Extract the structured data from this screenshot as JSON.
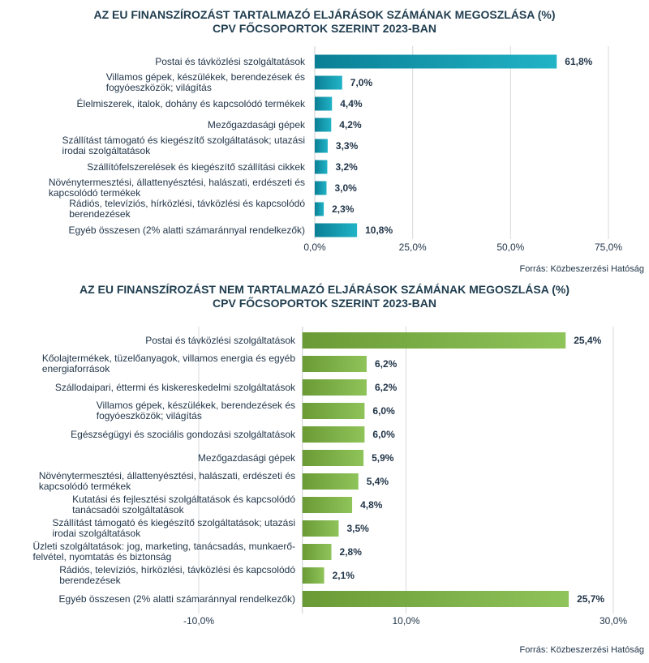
{
  "chart_data": [
    {
      "type": "bar",
      "orientation": "horizontal",
      "title": "AZ EU FINANSZÍROZÁST TARTALMAZÓ ELJÁRÁSOK SZÁMÁNAK MEGOSZLÁSA (%)",
      "subtitle": "CPV FŐCSOPORTOK SZERINT 2023-BAN",
      "categories": [
        "Postai és távközlési szolgáltatások",
        "Villamos gépek, készülékek, berendezések és fogyóeszközök; világítás",
        "Élelmiszerek, italok, dohány és kapcsolódó termékek",
        "Mezőgazdasági gépek",
        "Szállítást támogató és kiegészítő szolgáltatások; utazási irodai szolgáltatások",
        "Szállítófelszerelések és kiegészítő szállítási cikkek",
        "Növénytermesztési, állattenyésztési, halászati, erdészeti és kapcsolódó termékek",
        "Rádiós, televíziós, hírközlési, távközlési és kapcsolódó berendezések",
        "Egyéb összesen (2% alatti számaránnyal rendelkezők)"
      ],
      "category_lines": [
        [
          "Postai és távközlési szolgáltatások"
        ],
        [
          "Villamos gépek, készülékek, berendezések és",
          "fogyóeszközök; világítás"
        ],
        [
          "Élelmiszerek, italok, dohány és kapcsolódó termékek"
        ],
        [
          "Mezőgazdasági gépek"
        ],
        [
          "Szállítást támogató és kiegészítő szolgáltatások; utazási",
          "irodai szolgáltatások"
        ],
        [
          "Szállítófelszerelések és kiegészítő szállítási cikkek"
        ],
        [
          "Növénytermesztési, állattenyésztési, halászati, erdészeti és",
          "kapcsolódó termékek"
        ],
        [
          "Rádiós, televíziós, hírközlési, távközlési és kapcsolódó",
          "berendezések"
        ],
        [
          "Egyéb összesen (2% alatti számaránnyal rendelkezők)"
        ]
      ],
      "values": [
        61.8,
        7.0,
        4.4,
        4.2,
        3.3,
        3.2,
        3.0,
        2.3,
        10.8
      ],
      "value_labels": [
        "61,8%",
        "7,0%",
        "4,4%",
        "4,2%",
        "3,3%",
        "3,2%",
        "3,0%",
        "2,3%",
        "10,8%"
      ],
      "xlim": [
        0,
        75
      ],
      "xticks": [
        0,
        25,
        50,
        75
      ],
      "xtick_labels": [
        "0,0%",
        "25,0%",
        "50,0%",
        "75,0%"
      ],
      "grid": true,
      "bar_gradient": [
        "#0a7f95",
        "#21b3c6"
      ],
      "source": "Forrás: Közbeszerzési Hatóság"
    },
    {
      "type": "bar",
      "orientation": "horizontal",
      "title": "AZ EU FINANSZÍROZÁST NEM TARTALMAZÓ ELJÁRÁSOK SZÁMÁNAK MEGOSZLÁSA (%)",
      "subtitle": "CPV FŐCSOPORTOK SZERINT 2023-BAN",
      "categories": [
        "Postai és távközlési szolgáltatások",
        "Kőolajtermékek, tüzelőanyagok, villamos energia és egyéb energiaforrások",
        "Szállodaipari, éttermi és kiskereskedelmi szolgáltatások",
        "Villamos gépek, készülékek, berendezések és fogyóeszközök; világítás",
        "Egészségügyi és szociális gondozási szolgáltatások",
        "Mezőgazdasági gépek",
        "Növénytermesztési, állattenyésztési, halászati, erdészeti és kapcsolódó termékek",
        "Kutatási és fejlesztési szolgáltatások és kapcsolódó tanácsadói szolgáltatások",
        "Szállítást támogató és kiegészítő szolgáltatások; utazási irodai szolgáltatások",
        "Üzleti szolgáltatások: jog, marketing, tanácsadás, munkaerő-felvétel, nyomtatás és biztonság",
        "Rádiós, televíziós, hírközlési, távközlési és kapcsolódó berendezések",
        "Egyéb összesen (2% alatti számaránnyal rendelkezők)"
      ],
      "category_lines": [
        [
          "Postai és távközlési szolgáltatások"
        ],
        [
          "Kőolajtermékek, tüzelőanyagok, villamos energia és egyéb",
          "energiaforrások"
        ],
        [
          "Szállodaipari, éttermi és kiskereskedelmi szolgáltatások"
        ],
        [
          "Villamos gépek, készülékek, berendezések és",
          "fogyóeszközök; világítás"
        ],
        [
          "Egészségügyi és szociális gondozási szolgáltatások"
        ],
        [
          "Mezőgazdasági gépek"
        ],
        [
          "Növénytermesztési, állattenyésztési, halászati, erdészeti és",
          "kapcsolódó termékek"
        ],
        [
          "Kutatási és fejlesztési szolgáltatások és kapcsolódó",
          "tanácsadói szolgáltatások"
        ],
        [
          "Szállítást támogató és kiegészítő szolgáltatások; utazási",
          "irodai szolgáltatások"
        ],
        [
          "Üzleti szolgáltatások: jog, marketing, tanácsadás, munkaerő-",
          "felvétel, nyomtatás és biztonság"
        ],
        [
          "Rádiós, televíziós, hírközlési, távközlési és kapcsolódó",
          "berendezések"
        ],
        [
          "Egyéb összesen (2% alatti számaránnyal rendelkezők)"
        ]
      ],
      "values": [
        25.4,
        6.2,
        6.2,
        6.0,
        6.0,
        5.9,
        5.4,
        4.8,
        3.5,
        2.8,
        2.1,
        25.7
      ],
      "value_labels": [
        "25,4%",
        "6,2%",
        "6,2%",
        "6,0%",
        "6,0%",
        "5,9%",
        "5,4%",
        "4,8%",
        "3,5%",
        "2,8%",
        "2,1%",
        "25,7%"
      ],
      "xlim": [
        -10,
        30
      ],
      "xticks": [
        -10,
        10,
        30
      ],
      "xtick_labels": [
        "-10,0%",
        "10,0%",
        "30,0%"
      ],
      "grid": true,
      "bar_gradient": [
        "#6a9a35",
        "#8fc45a"
      ],
      "source": "Forrás: Közbeszerzési Hatóság"
    }
  ]
}
